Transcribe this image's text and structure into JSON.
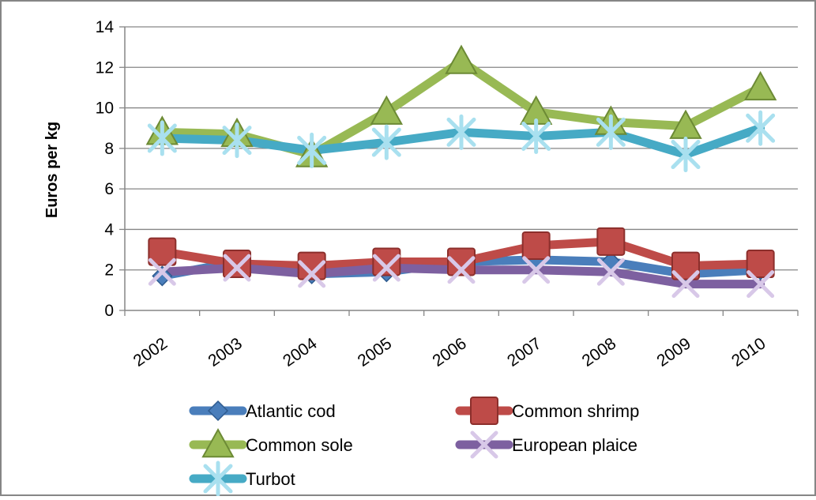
{
  "chart_data": {
    "type": "line",
    "title": "",
    "xlabel": "",
    "ylabel": "Euros per kg",
    "ylim": [
      0,
      14
    ],
    "yticks": [
      0,
      2,
      4,
      6,
      8,
      10,
      12,
      14
    ],
    "grid": true,
    "legend_position": "bottom",
    "categories": [
      "2002",
      "2003",
      "2004",
      "2005",
      "2006",
      "2007",
      "2008",
      "2009",
      "2010"
    ],
    "series": [
      {
        "name": "Atlantic cod",
        "color": "#4a7ebb",
        "marker": "diamond",
        "values": [
          1.7,
          2.4,
          1.8,
          1.9,
          2.4,
          2.5,
          2.4,
          1.8,
          2.0
        ]
      },
      {
        "name": "Common shrimp",
        "color": "#be4b48",
        "marker": "square",
        "values": [
          2.9,
          2.3,
          2.2,
          2.4,
          2.4,
          3.2,
          3.4,
          2.2,
          2.3
        ]
      },
      {
        "name": "Common sole",
        "color": "#98b954",
        "marker": "triangle",
        "values": [
          8.8,
          8.7,
          7.7,
          9.8,
          12.3,
          9.8,
          9.3,
          9.1,
          11.0
        ]
      },
      {
        "name": "European plaice",
        "color": "#7d60a0",
        "marker": "x",
        "values": [
          1.9,
          2.1,
          1.8,
          2.1,
          2.0,
          2.0,
          1.9,
          1.3,
          1.3
        ]
      },
      {
        "name": "Turbot",
        "color": "#46aac5",
        "marker": "star",
        "values": [
          8.5,
          8.4,
          7.9,
          8.3,
          8.8,
          8.6,
          8.8,
          7.7,
          9.0
        ]
      }
    ]
  }
}
